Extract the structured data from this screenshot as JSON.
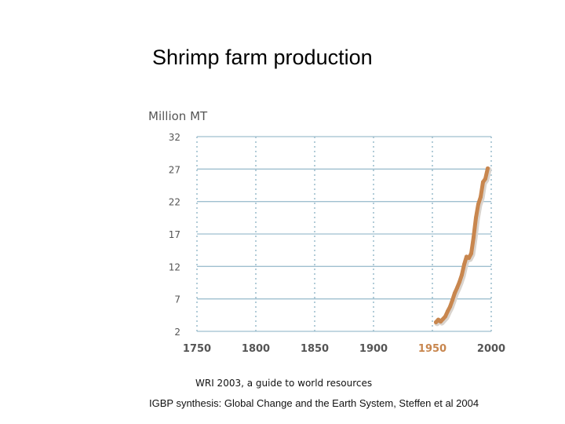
{
  "title": "Shrimp farm production",
  "chart_data": {
    "type": "line",
    "ylabel": "Million MT",
    "xlabel": "",
    "y_ticks": [
      2,
      7,
      12,
      17,
      22,
      27,
      32
    ],
    "x_ticks": [
      1750,
      1800,
      1850,
      1900,
      1950,
      2000
    ],
    "highlight_tick": 1950,
    "xlim": [
      1750,
      2000
    ],
    "ylim": [
      2,
      32
    ],
    "grid": true,
    "series": [
      {
        "name": "Shrimp farm production",
        "color": "#c8864e",
        "points": [
          [
            1953,
            3.4
          ],
          [
            1955,
            3.8
          ],
          [
            1957,
            3.5
          ],
          [
            1959,
            3.9
          ],
          [
            1961,
            4.3
          ],
          [
            1963,
            5.1
          ],
          [
            1965,
            5.8
          ],
          [
            1967,
            6.8
          ],
          [
            1969,
            7.9
          ],
          [
            1971,
            8.7
          ],
          [
            1973,
            9.6
          ],
          [
            1975,
            10.7
          ],
          [
            1977,
            12.3
          ],
          [
            1979,
            13.5
          ],
          [
            1981,
            13.3
          ],
          [
            1983,
            14.0
          ],
          [
            1985,
            16.5
          ],
          [
            1987,
            19.5
          ],
          [
            1989,
            21.6
          ],
          [
            1991,
            22.7
          ],
          [
            1993,
            25.0
          ],
          [
            1995,
            25.5
          ],
          [
            1997,
            27.1
          ]
        ]
      }
    ]
  },
  "captions": {
    "source": "WRI 2003, a guide to world resources",
    "credit": "IGBP synthesis: Global Change and the Earth System, Steffen et al 2004"
  }
}
